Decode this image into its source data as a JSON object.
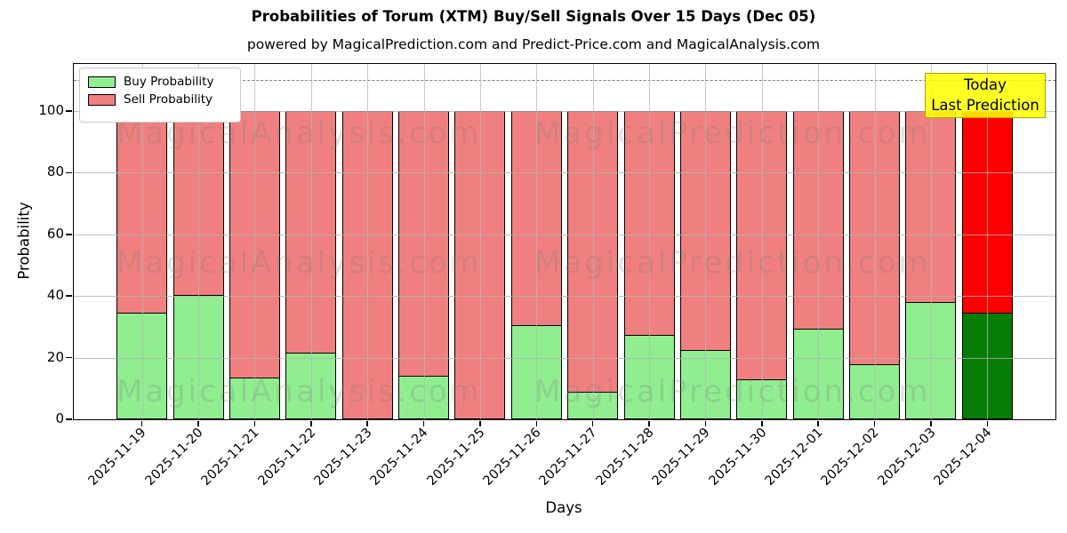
{
  "header": {
    "title": "Probabilities of Torum (XTM) Buy/Sell Signals Over 15 Days (Dec 05)",
    "subtitle": "powered by MagicalPrediction.com and Predict-Price.com and MagicalAnalysis.com"
  },
  "annotation": {
    "lines": [
      "Today",
      "Last Prediction"
    ],
    "bg_color": "#ffff00"
  },
  "watermarks": {
    "left": "MagicalAnalysis.com",
    "right": "MagicalPrediction.com"
  },
  "axes": {
    "ylabel": "Probability",
    "xlabel": "Days",
    "yticks": [
      0,
      20,
      40,
      60,
      80,
      100
    ],
    "dashed_line_value": 110
  },
  "chart_data": {
    "type": "bar",
    "stacked": true,
    "title": "Probabilities of Torum (XTM) Buy/Sell Signals Over 15 Days (Dec 05)",
    "xlabel": "Days",
    "ylabel": "Probability",
    "ylim": [
      0,
      115.3
    ],
    "grid": true,
    "legend_position": "upper left",
    "categories": [
      "2025-11-19",
      "2025-11-20",
      "2025-11-21",
      "2025-11-22",
      "2025-11-23",
      "2025-11-24",
      "2025-11-25",
      "2025-11-26",
      "2025-11-27",
      "2025-11-28",
      "2025-11-29",
      "2025-11-30",
      "2025-12-01",
      "2025-12-02",
      "2025-12-03",
      "2025-12-04"
    ],
    "series": [
      {
        "name": "Buy Probability",
        "color": "#90ee90",
        "values": [
          34.5,
          40.5,
          13.5,
          21.5,
          0,
          14,
          0,
          30.5,
          9,
          27.5,
          22.5,
          13,
          29.5,
          18,
          38,
          34.5
        ]
      },
      {
        "name": "Sell Probability",
        "color": "#f08080",
        "values": [
          65.5,
          59.5,
          86.5,
          78.5,
          100,
          86,
          100,
          69.5,
          91,
          72.5,
          77.5,
          87,
          70.5,
          82,
          62,
          65.5
        ]
      }
    ],
    "today_highlight": {
      "index": 15,
      "buy_color": "#067d06",
      "sell_color": "#ff0000"
    },
    "dashed_threshold": 110
  }
}
